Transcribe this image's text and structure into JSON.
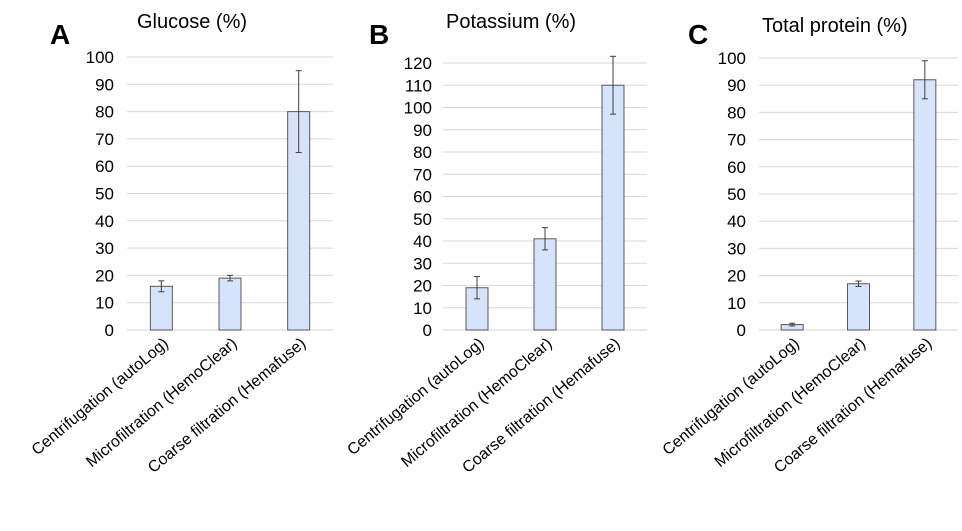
{
  "chart_data": [
    {
      "type": "bar",
      "panel_letter": "A",
      "title": "Glucose (%)",
      "categories": [
        "Centrifugation (autoLog)",
        "Microfiltration (HemoClear)",
        "Coarse filtration (Hemafuse)"
      ],
      "values": [
        16,
        19,
        80
      ],
      "error": [
        2,
        1,
        15
      ],
      "ylim": [
        0,
        100
      ],
      "yticks": [
        0,
        10,
        20,
        30,
        40,
        50,
        60,
        70,
        80,
        90,
        100
      ],
      "grid": true,
      "bar_color": "#d6e3fb",
      "bar_edge_color": "#595959"
    },
    {
      "type": "bar",
      "panel_letter": "B",
      "title": "Potassium (%)",
      "categories": [
        "Centrifugation (autoLog)",
        "Microfiltration (HemoClear)",
        "Coarse filtration (Hemafuse)"
      ],
      "values": [
        19,
        41,
        110
      ],
      "error": [
        5,
        5,
        13
      ],
      "ylim": [
        0,
        120
      ],
      "yticks": [
        0,
        10,
        20,
        30,
        40,
        50,
        60,
        70,
        80,
        90,
        100,
        110,
        120
      ],
      "grid": true,
      "bar_color": "#d6e3fb",
      "bar_edge_color": "#595959"
    },
    {
      "type": "bar",
      "panel_letter": "C",
      "title": "Total protein (%)",
      "categories": [
        "Centrifugation (autoLog)",
        "Microfiltration (HemoClear)",
        "Coarse filtration (Hemafuse)"
      ],
      "values": [
        2,
        17,
        92
      ],
      "error": [
        0.5,
        1,
        7
      ],
      "ylim": [
        0,
        100
      ],
      "yticks": [
        0,
        10,
        20,
        30,
        40,
        50,
        60,
        70,
        80,
        90,
        100
      ],
      "grid": true,
      "bar_color": "#d6e3fb",
      "bar_edge_color": "#595959"
    }
  ]
}
